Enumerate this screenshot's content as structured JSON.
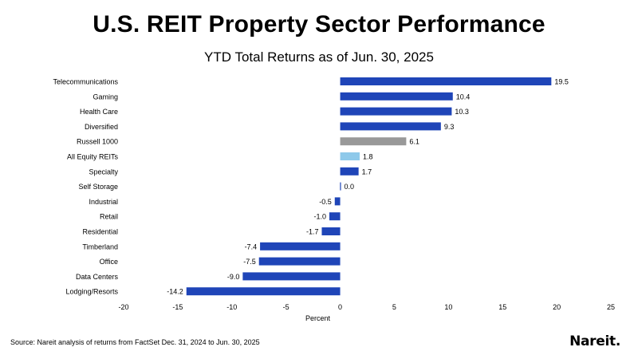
{
  "header": {
    "title": "U.S. REIT Property Sector Performance",
    "subtitle": "YTD Total Returns as of Jun. 30, 2025"
  },
  "footer": {
    "source": "Source: Nareit analysis of returns from FactSet Dec. 31, 2024 to Jun. 30, 2025",
    "logo_text": "Nareit."
  },
  "chart_data": {
    "type": "bar",
    "orientation": "horizontal",
    "categories": [
      "Telecommunications",
      "Gaming",
      "Health Care",
      "Diversified",
      "Russell 1000",
      "All Equity REITs",
      "Specialty",
      "Self Storage",
      "Industrial",
      "Retail",
      "Residential",
      "Timberland",
      "Office",
      "Data Centers",
      "Lodging/Resorts"
    ],
    "values": [
      19.5,
      10.4,
      10.3,
      9.3,
      6.1,
      1.8,
      1.7,
      0.0,
      -0.5,
      -1.0,
      -1.7,
      -7.4,
      -7.5,
      -9.0,
      -14.2
    ],
    "value_labels": [
      "19.5",
      "10.4",
      "10.3",
      "9.3",
      "6.1",
      "1.8",
      "1.7",
      "0.0",
      "-0.5",
      "-1.0",
      "-1.7",
      "-7.4",
      "-7.5",
      "-9.0",
      "-14.2"
    ],
    "bar_colors": [
      "#1f45b8",
      "#1f45b8",
      "#1f45b8",
      "#1f45b8",
      "#999999",
      "#8ec9ea",
      "#1f45b8",
      "#1f45b8",
      "#1f45b8",
      "#1f45b8",
      "#1f45b8",
      "#1f45b8",
      "#1f45b8",
      "#1f45b8",
      "#1f45b8"
    ],
    "xlabel": "Percent",
    "xlim": [
      -20,
      25
    ],
    "xticks": [
      -20,
      -15,
      -10,
      -5,
      0,
      5,
      10,
      15,
      20,
      25
    ],
    "grid": false,
    "legend": "none"
  }
}
